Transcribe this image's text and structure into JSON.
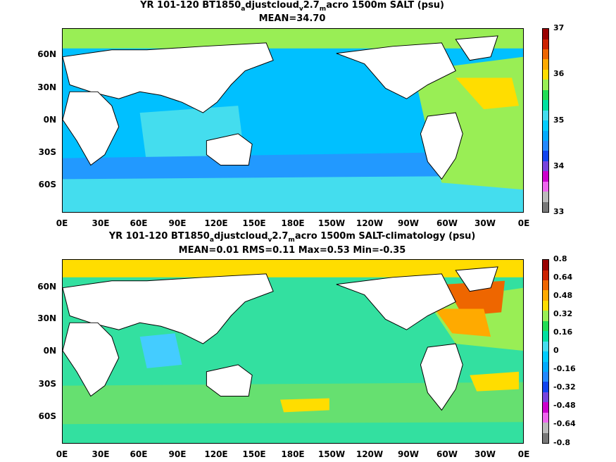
{
  "panels": [
    {
      "title_parts": [
        "YR 101-120 BT1850",
        "a",
        "djustcloud",
        "v",
        "2.7",
        "m",
        "acro 1500m SALT (psu)"
      ],
      "subtitle": "MEAN=34.70",
      "lat_labels": [
        "60N",
        "30N",
        "0N",
        "30S",
        "60S"
      ],
      "lon_labels": [
        "0E",
        "30E",
        "60E",
        "90E",
        "120E",
        "150E",
        "180E",
        "150W",
        "120W",
        "90W",
        "60W",
        "30W",
        "0E"
      ],
      "colorbar_labels": [
        "37",
        "36",
        "35",
        "34",
        "33"
      ],
      "colorbar_colors": [
        "#777777",
        "#bbbbbb",
        "#ee66ee",
        "#cc00cc",
        "#7744dd",
        "#1144ee",
        "#2288ff",
        "#00aaff",
        "#00ccff",
        "#44ddee",
        "#00e0a0",
        "#22dd55",
        "#99ee55",
        "#ffdd00",
        "#ffaa00",
        "#ee6600",
        "#cc2200",
        "#990000"
      ],
      "ocean_color": "#00c0ff"
    },
    {
      "title_parts": [
        "YR 101-120 BT1850",
        "a",
        "djustcloud",
        "v",
        "2.7",
        "m",
        "acro 1500m SALT-climatology (psu)"
      ],
      "subtitle": "MEAN=0.01   RMS=0.11   Max=0.53   Min=-0.35",
      "lat_labels": [
        "60N",
        "30N",
        "0N",
        "30S",
        "60S"
      ],
      "lon_labels": [
        "0E",
        "30E",
        "60E",
        "90E",
        "120E",
        "150E",
        "180E",
        "150W",
        "120W",
        "90W",
        "60W",
        "30W",
        "0E"
      ],
      "colorbar_labels": [
        "0.8",
        "0.64",
        "0.48",
        "0.32",
        "0.16",
        "0",
        "-0.16",
        "-0.32",
        "-0.48",
        "-0.64",
        "-0.8"
      ],
      "colorbar_colors": [
        "#777777",
        "#bbbbbb",
        "#ee66ee",
        "#cc00cc",
        "#7744dd",
        "#1144ee",
        "#2288ff",
        "#00aaff",
        "#00ccff",
        "#44ddee",
        "#00e0a0",
        "#22dd55",
        "#99ee55",
        "#ffdd00",
        "#ffaa00",
        "#ee6600",
        "#cc2200",
        "#990000"
      ],
      "ocean_color": "#33e0a0"
    }
  ]
}
